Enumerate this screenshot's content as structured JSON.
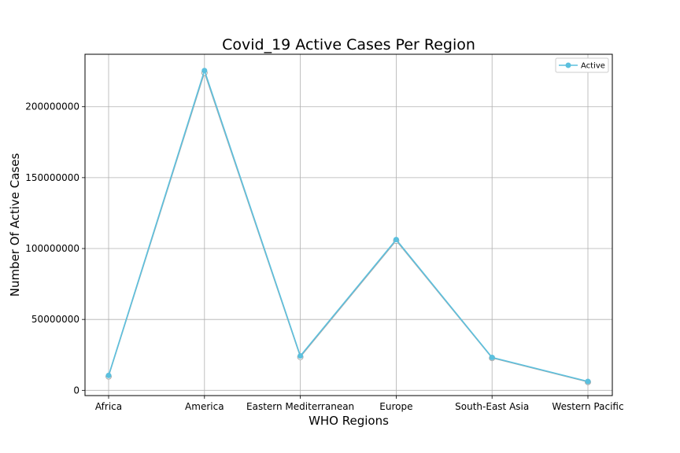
{
  "chart_data": {
    "type": "line",
    "title": "Covid_19 Active Cases Per Region",
    "xlabel": "WHO Regions",
    "ylabel": "Number Of Active Cases",
    "categories": [
      "Africa",
      "America",
      "Eastern Mediterranean",
      "Europe",
      "South-East Asia",
      "Western Pacific"
    ],
    "series": [
      {
        "name": "Active",
        "values": [
          10500000,
          225500000,
          24300000,
          106300000,
          23200000,
          6300000
        ],
        "color": "#5bc0de"
      },
      {
        "name": "",
        "values": [
          9800000,
          224000000,
          23500000,
          105500000,
          22800000,
          5900000
        ],
        "color": "#a9a9a9"
      }
    ],
    "yticks": [
      0,
      50000000,
      100000000,
      150000000,
      200000000
    ],
    "ytick_labels": [
      "0",
      "50000000",
      "100000000",
      "150000000",
      "200000000"
    ],
    "ylim": [
      -3700000,
      237000000
    ],
    "grid": true,
    "legend_position": "top-right"
  }
}
